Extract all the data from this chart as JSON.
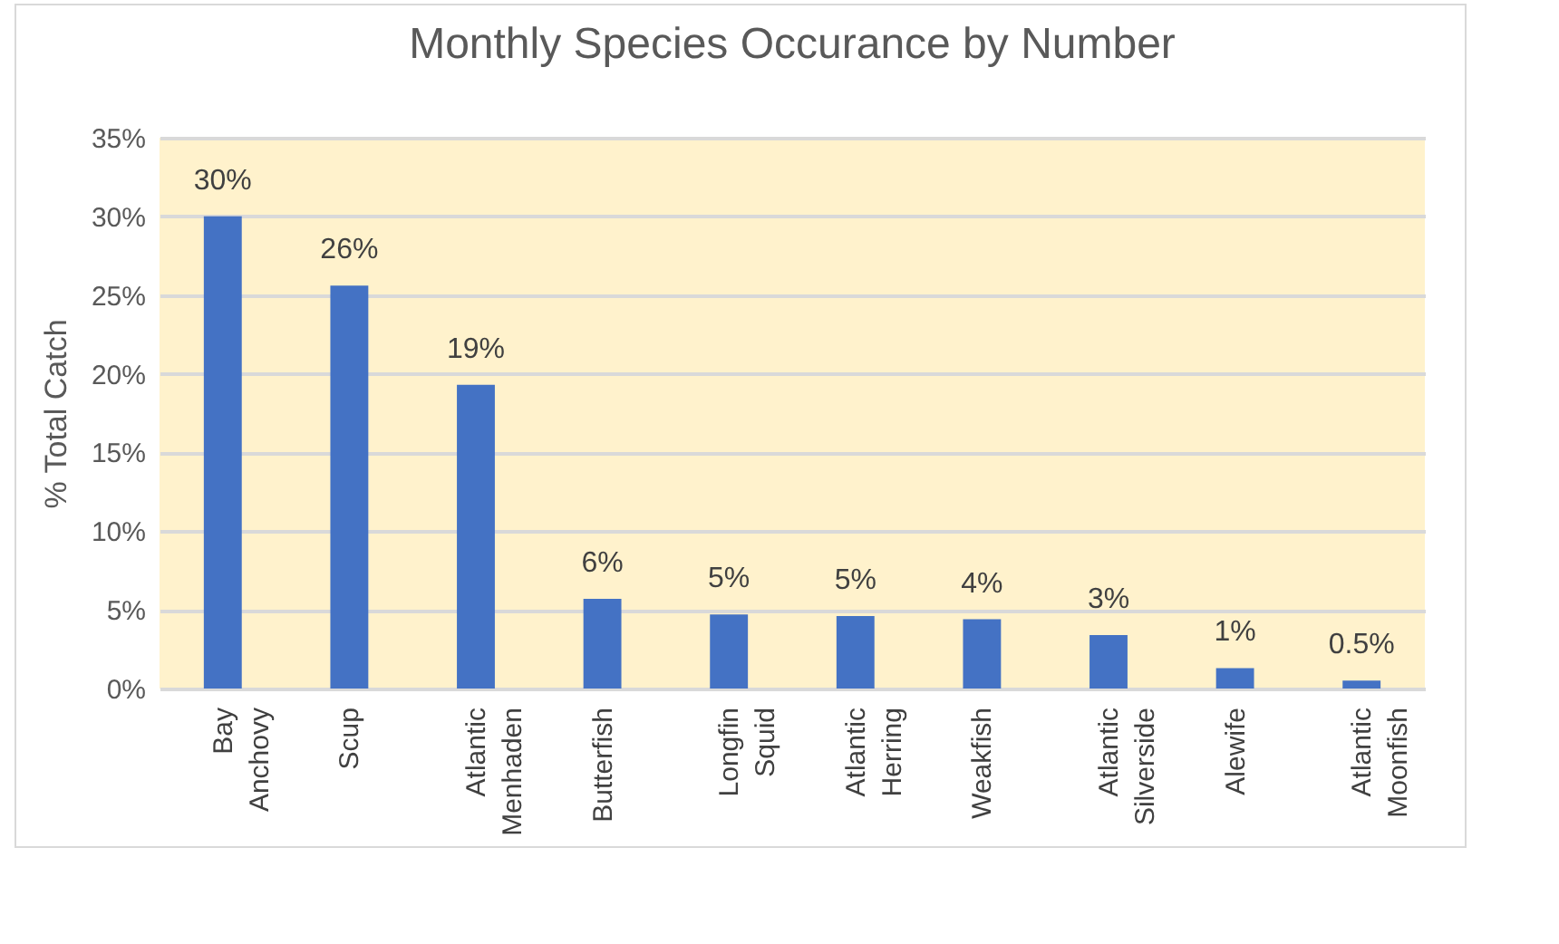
{
  "chart_data": {
    "type": "bar",
    "title": "Monthly Species Occurance by Number",
    "ylabel": "% Total Catch",
    "categories": [
      "Bay Anchovy",
      "Scup",
      "Atlantic Menhaden",
      "Butterfish",
      "Longfin Squid",
      "Atlantic Herring",
      "Weakfish",
      "Atlantic Silverside",
      "Alewife",
      "Atlantic Moonfish"
    ],
    "values": [
      30,
      25.6,
      19.3,
      5.7,
      4.7,
      4.6,
      4.4,
      3.4,
      1.3,
      0.5
    ],
    "value_labels": [
      "30%",
      "26%",
      "19%",
      "6%",
      "5%",
      "5%",
      "4%",
      "3%",
      "1%",
      "0.5%"
    ],
    "color": "#4472c4",
    "ylim": [
      0,
      35
    ],
    "yticks": [
      {
        "value": 0,
        "label": "0%"
      },
      {
        "value": 5,
        "label": "5%"
      },
      {
        "value": 10,
        "label": "10%"
      },
      {
        "value": 15,
        "label": "15%"
      },
      {
        "value": 20,
        "label": "20%"
      },
      {
        "value": 25,
        "label": "25%"
      },
      {
        "value": 30,
        "label": "30%"
      },
      {
        "value": 35,
        "label": "35%"
      }
    ],
    "grid": "y"
  }
}
